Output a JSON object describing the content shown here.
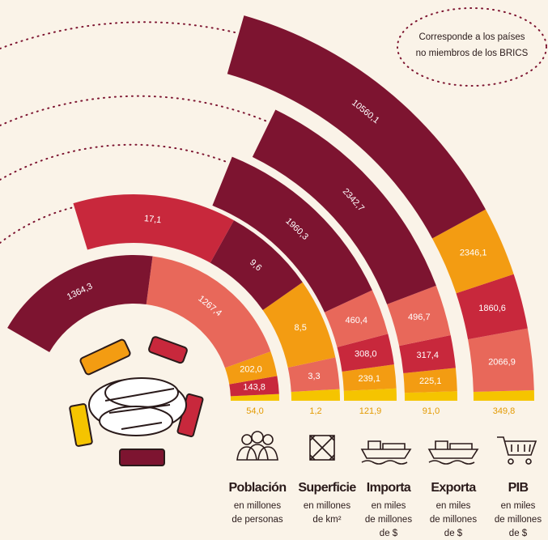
{
  "chart_data": {
    "type": "radial-stacked-bar",
    "annotation": [
      "Corresponde a los países",
      "no miembros de los BRICS"
    ],
    "rings": [
      {
        "name": "Población",
        "unit": [
          "en millones",
          "de personas"
        ],
        "values": [
          54.0,
          143.8,
          202.0,
          1267.4,
          1364.3
        ],
        "value_labels": [
          "54,0",
          "143,8",
          "202,0",
          "1267,4",
          "1364,3"
        ],
        "colors": [
          "#f5c400",
          "#c8283c",
          "#f39c12",
          "#e8685a",
          "#7d1430"
        ]
      },
      {
        "name": "Superficie",
        "unit": [
          "en millones",
          "de km²"
        ],
        "values": [
          1.2,
          3.3,
          8.5,
          9.6,
          17.1
        ],
        "value_labels": [
          "1,2",
          "3,3",
          "8,5",
          "9,6",
          "17,1"
        ],
        "colors": [
          "#f5c400",
          "#e8685a",
          "#f39c12",
          "#7d1430",
          "#c8283c"
        ]
      },
      {
        "name": "Importa",
        "unit": [
          "en miles",
          "de millones",
          "de $"
        ],
        "values": [
          121.9,
          239.1,
          308.0,
          460.4,
          1960.3
        ],
        "value_labels": [
          "121,9",
          "239,1",
          "308,0",
          "460,4",
          "1960,3"
        ],
        "colors": [
          "#f5c400",
          "#f39c12",
          "#c8283c",
          "#e8685a",
          "#7d1430"
        ]
      },
      {
        "name": "Exporta",
        "unit": [
          "en miles",
          "de millones",
          "de $"
        ],
        "values": [
          91.0,
          225.1,
          317.4,
          496.7,
          2342.7
        ],
        "value_labels": [
          "91,0",
          "225,1",
          "317,4",
          "496,7",
          "2342,7"
        ],
        "colors": [
          "#f5c400",
          "#f39c12",
          "#c8283c",
          "#e8685a",
          "#7d1430"
        ]
      },
      {
        "name": "PIB",
        "unit": [
          "en miles",
          "de millones",
          "de $"
        ],
        "values": [
          349.8,
          2066.9,
          1860.6,
          2346.1,
          10560.1
        ],
        "value_labels": [
          "349,8",
          "2066,9",
          "1860,6",
          "2346,1",
          "10560,1"
        ],
        "colors": [
          "#f5c400",
          "#e8685a",
          "#c8283c",
          "#f39c12",
          "#7d1430"
        ]
      }
    ]
  }
}
